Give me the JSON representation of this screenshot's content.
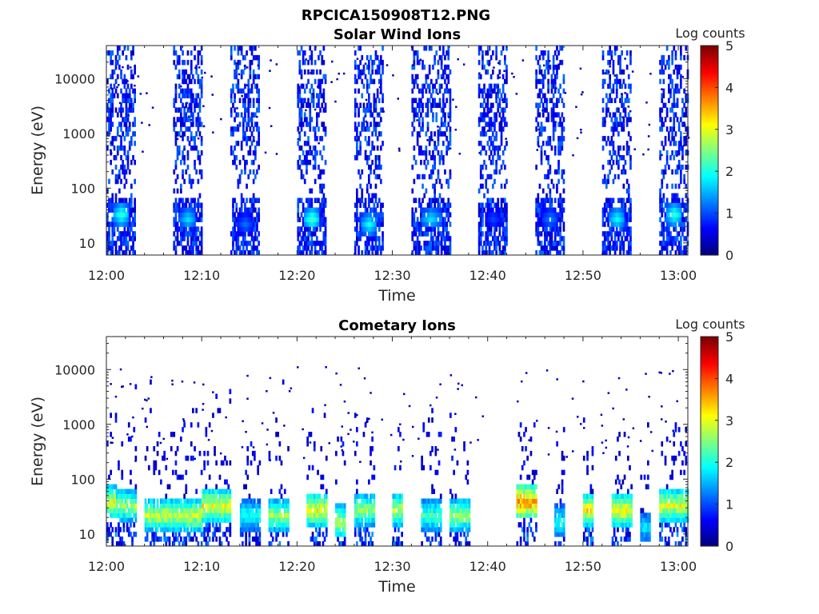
{
  "figure": {
    "title": "RPCICA150908T12.PNG"
  },
  "colors": {
    "axis": "#262626",
    "background": "#ffffff",
    "colormap": "jet"
  },
  "chart_data": [
    {
      "type": "heatmap",
      "title": "Solar Wind Ions",
      "xlabel": "Time",
      "ylabel": "Energy (eV)",
      "x_ticks": [
        "12:00",
        "12:10",
        "12:20",
        "12:30",
        "12:40",
        "12:50",
        "13:00"
      ],
      "y_ticks": [
        "10",
        "100",
        "1000",
        "10000"
      ],
      "y_scale": "log",
      "xlim": [
        "12:00",
        "13:01"
      ],
      "ylim": [
        6,
        40000
      ],
      "colorbar": {
        "label": "Log counts",
        "ticks": [
          "0",
          "1",
          "2",
          "3",
          "4",
          "5"
        ],
        "range": [
          0,
          5
        ]
      },
      "description_bursts": [
        {
          "start": "12:00",
          "end": "12:03",
          "peak_energy_eV": 30,
          "peak_log_counts": 2.2
        },
        {
          "start": "12:07",
          "end": "12:10",
          "peak_energy_eV": 25,
          "peak_log_counts": 1.8
        },
        {
          "start": "12:13",
          "end": "12:16",
          "peak_energy_eV": 20,
          "peak_log_counts": 1.2
        },
        {
          "start": "12:20",
          "end": "12:23",
          "peak_energy_eV": 25,
          "peak_log_counts": 2.3
        },
        {
          "start": "12:26",
          "end": "12:29",
          "peak_energy_eV": 20,
          "peak_log_counts": 2.0
        },
        {
          "start": "12:32",
          "end": "12:36",
          "peak_energy_eV": 25,
          "peak_log_counts": 1.8
        },
        {
          "start": "12:39",
          "end": "12:42",
          "peak_energy_eV": 25,
          "peak_log_counts": 1.0
        },
        {
          "start": "12:45",
          "end": "12:48",
          "peak_energy_eV": 25,
          "peak_log_counts": 1.3
        },
        {
          "start": "12:52",
          "end": "12:55",
          "peak_energy_eV": 25,
          "peak_log_counts": 2.0
        },
        {
          "start": "12:58",
          "end": "13:01",
          "peak_energy_eV": 30,
          "peak_log_counts": 2.2
        }
      ]
    },
    {
      "type": "heatmap",
      "title": "Cometary Ions",
      "xlabel": "Time",
      "ylabel": "Energy (eV)",
      "x_ticks": [
        "12:00",
        "12:10",
        "12:20",
        "12:30",
        "12:40",
        "12:50",
        "13:00"
      ],
      "y_ticks": [
        "10",
        "100",
        "1000",
        "10000"
      ],
      "y_scale": "log",
      "xlim": [
        "12:00",
        "13:01"
      ],
      "ylim": [
        6,
        40000
      ],
      "colorbar": {
        "label": "Log counts",
        "ticks": [
          "0",
          "1",
          "2",
          "3",
          "4",
          "5"
        ],
        "range": [
          0,
          5
        ]
      },
      "description_bursts": [
        {
          "start": "12:00",
          "end": "12:01",
          "peak_energy_eV": 35,
          "peak_log_counts": 3.5
        },
        {
          "start": "12:01",
          "end": "12:03",
          "peak_energy_eV": 30,
          "peak_log_counts": 3.0
        },
        {
          "start": "12:04",
          "end": "12:07",
          "peak_energy_eV": 20,
          "peak_log_counts": 3.2
        },
        {
          "start": "12:07",
          "end": "12:10",
          "peak_energy_eV": 20,
          "peak_log_counts": 3.3
        },
        {
          "start": "12:10",
          "end": "12:13",
          "peak_energy_eV": 30,
          "peak_log_counts": 3.5
        },
        {
          "start": "12:14",
          "end": "12:16",
          "peak_energy_eV": 20,
          "peak_log_counts": 2.3
        },
        {
          "start": "12:17",
          "end": "12:19",
          "peak_energy_eV": 20,
          "peak_log_counts": 3.0
        },
        {
          "start": "12:21",
          "end": "12:23",
          "peak_energy_eV": 25,
          "peak_log_counts": 3.5
        },
        {
          "start": "12:24",
          "end": "12:25",
          "peak_energy_eV": 15,
          "peak_log_counts": 3.2
        },
        {
          "start": "12:26",
          "end": "12:28",
          "peak_energy_eV": 25,
          "peak_log_counts": 3.0
        },
        {
          "start": "12:30",
          "end": "12:31",
          "peak_energy_eV": 25,
          "peak_log_counts": 3.2
        },
        {
          "start": "12:33",
          "end": "12:35",
          "peak_energy_eV": 20,
          "peak_log_counts": 2.6
        },
        {
          "start": "12:36",
          "end": "12:38",
          "peak_energy_eV": 20,
          "peak_log_counts": 3.0
        },
        {
          "start": "12:43",
          "end": "12:45",
          "peak_energy_eV": 35,
          "peak_log_counts": 4.2
        },
        {
          "start": "12:47",
          "end": "12:48",
          "peak_energy_eV": 15,
          "peak_log_counts": 2.3
        },
        {
          "start": "12:50",
          "end": "12:51",
          "peak_energy_eV": 25,
          "peak_log_counts": 3.6
        },
        {
          "start": "12:53",
          "end": "12:55",
          "peak_energy_eV": 25,
          "peak_log_counts": 3.6
        },
        {
          "start": "12:56",
          "end": "12:57",
          "peak_energy_eV": 12,
          "peak_log_counts": 2.0
        },
        {
          "start": "12:58",
          "end": "13:01",
          "peak_energy_eV": 30,
          "peak_log_counts": 3.4
        }
      ]
    }
  ]
}
